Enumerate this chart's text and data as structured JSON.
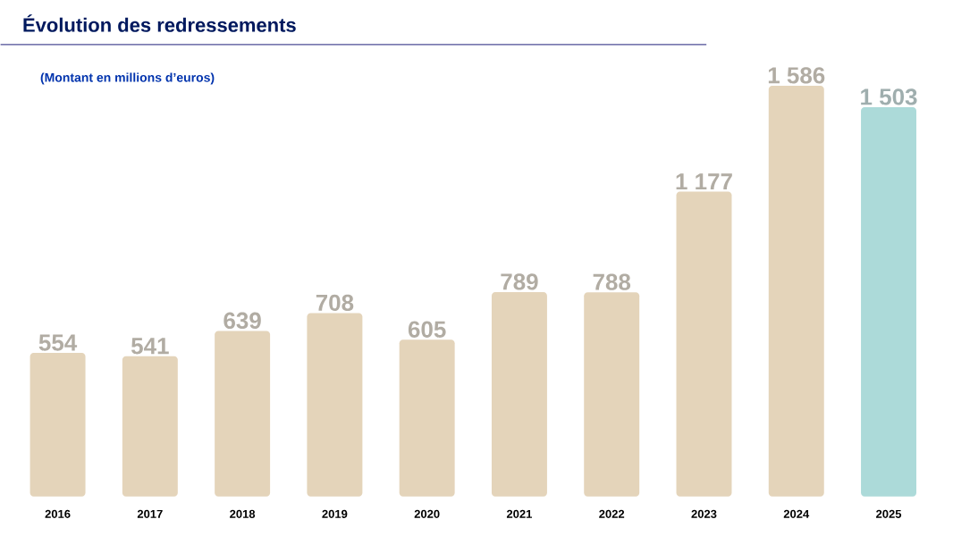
{
  "chart_data": {
    "type": "bar",
    "title": "Évolution des redressements",
    "subtitle": "(Montant en millions d’euros)",
    "categories": [
      "2016",
      "2017",
      "2018",
      "2019",
      "2020",
      "2021",
      "2022",
      "2023",
      "2024",
      "2025"
    ],
    "values": [
      554,
      541,
      639,
      708,
      605,
      789,
      788,
      1177,
      1586,
      1503
    ],
    "value_labels": [
      "554",
      "541",
      "639",
      "708",
      "605",
      "789",
      "788",
      "1 177",
      "1 586",
      "1 503"
    ],
    "colors": [
      "#e4d4ba",
      "#e4d4ba",
      "#e4d4ba",
      "#e4d4ba",
      "#e4d4ba",
      "#e4d4ba",
      "#e4d4ba",
      "#e4d4ba",
      "#e4d4ba",
      "#acdad9"
    ],
    "data_labels": true
  }
}
